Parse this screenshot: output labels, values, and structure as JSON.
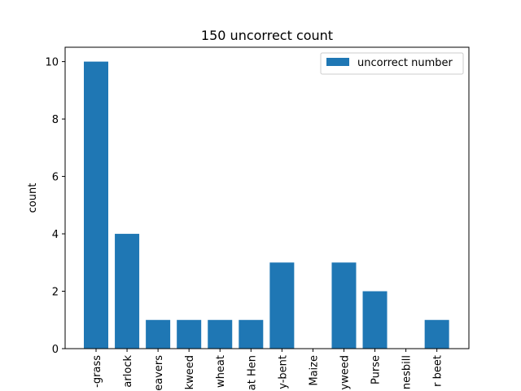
{
  "chart_data": {
    "type": "bar",
    "title": "150 uncorrect count",
    "xlabel": "",
    "ylabel": "count",
    "categories": [
      "-grass",
      "arlock",
      "eavers",
      "kweed",
      "wheat",
      "at Hen",
      "y-bent",
      "Maize",
      "yweed",
      "Purse",
      "nesbill",
      "r beet"
    ],
    "series": [
      {
        "name": "uncorrect number",
        "values": [
          10,
          4,
          1,
          1,
          1,
          1,
          3,
          0,
          3,
          2,
          0,
          1
        ]
      }
    ],
    "yticks": [
      "0",
      "2",
      "4",
      "6",
      "8",
      "10"
    ],
    "ylim": [
      0,
      10.5
    ],
    "grid": false,
    "legend_position": "top-right",
    "bar_color": "#1f77b4"
  }
}
